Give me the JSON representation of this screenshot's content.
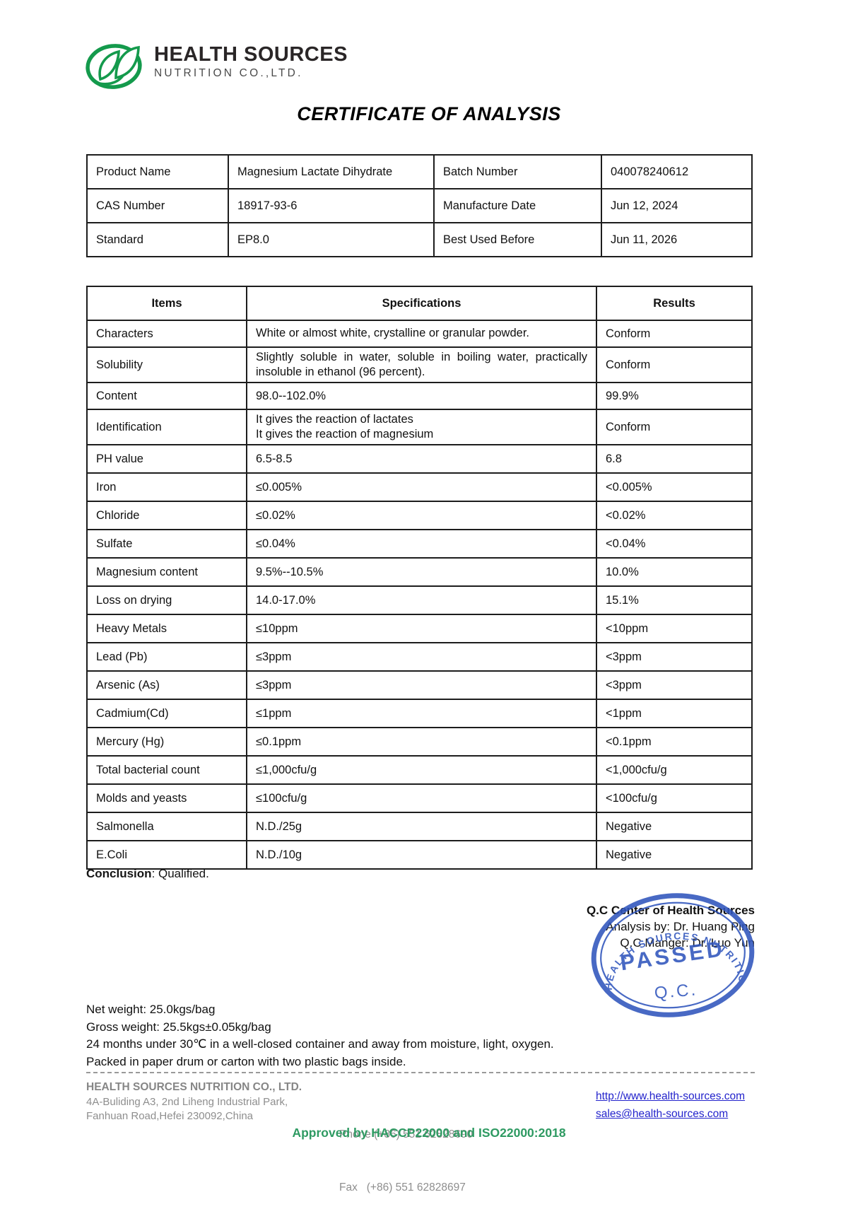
{
  "logo": {
    "name": "HEALTH SOURCES",
    "subtitle": "NUTRITION CO.,LTD.",
    "green": "#149a4c"
  },
  "title": "CERTIFICATE OF ANALYSIS",
  "product_table": {
    "rows": [
      [
        "Product Name",
        "Magnesium Lactate Dihydrate",
        "Batch Number",
        "040078240612"
      ],
      [
        "CAS Number",
        "18917-93-6",
        "Manufacture Date",
        "Jun 12, 2024"
      ],
      [
        "Standard",
        "EP8.0",
        "Best Used Before",
        "Jun 11, 2026"
      ]
    ]
  },
  "spec_table": {
    "headers": [
      "Items",
      "Specifications",
      "Results"
    ],
    "rows": [
      {
        "item": "Characters",
        "spec": "White or almost white, crystalline or granular powder.",
        "result": "Conform",
        "justify": false
      },
      {
        "item": "Solubility",
        "spec": "Slightly soluble in water, soluble in boiling water, practically insoluble in ethanol (96 percent).",
        "result": "Conform",
        "justify": true
      },
      {
        "item": "Content",
        "spec": "98.0--102.0%",
        "result": "99.9%",
        "justify": false
      },
      {
        "item": "Identification",
        "spec": "It gives the reaction of lactates\nIt gives the reaction of magnesium",
        "result": "Conform",
        "justify": false
      },
      {
        "item": "PH value",
        "spec": "6.5-8.5",
        "result": "6.8",
        "justify": false
      },
      {
        "item": "Iron",
        "spec": "≤0.005%",
        "result": "<0.005%",
        "justify": false
      },
      {
        "item": "Chloride",
        "spec": "≤0.02%",
        "result": "<0.02%",
        "justify": false
      },
      {
        "item": "Sulfate",
        "spec": "≤0.04%",
        "result": "<0.04%",
        "justify": false
      },
      {
        "item": "Magnesium content",
        "spec": "9.5%--10.5%",
        "result": "10.0%",
        "justify": false
      },
      {
        "item": "Loss on drying",
        "spec": "14.0-17.0%",
        "result": "15.1%",
        "justify": false
      },
      {
        "item": "Heavy Metals",
        "spec": "≤10ppm",
        "result": "<10ppm",
        "justify": false
      },
      {
        "item": "Lead (Pb)",
        "spec": "≤3ppm",
        "result": "<3ppm",
        "justify": false
      },
      {
        "item": "Arsenic (As)",
        "spec": "≤3ppm",
        "result": "<3ppm",
        "justify": false
      },
      {
        "item": "Cadmium(Cd)",
        "spec": "≤1ppm",
        "result": "<1ppm",
        "justify": false
      },
      {
        "item": "Mercury (Hg)",
        "spec": "≤0.1ppm",
        "result": "<0.1ppm",
        "justify": false
      },
      {
        "item": "Total bacterial count",
        "spec": "≤1,000cfu/g",
        "result": "<1,000cfu/g",
        "justify": false
      },
      {
        "item": "Molds and yeasts",
        "spec": "≤100cfu/g",
        "result": "<100cfu/g",
        "justify": false
      },
      {
        "item": "Salmonella",
        "spec": "N.D./25g",
        "result": "Negative",
        "justify": false
      },
      {
        "item": "E.Coli",
        "spec": "N.D./10g",
        "result": "Negative",
        "justify": false
      }
    ]
  },
  "conclusion": {
    "label": "Conclusion",
    "text": ": Qualified."
  },
  "qc_block": {
    "line1": "Q.C Center of Health Sources",
    "line2": "Analysis by: Dr. Huang Ping",
    "line3": "Q.C Manger: Dr. Luo Yun"
  },
  "stamp": {
    "ring_text": "HEALTH SOURCES NUTRITION CO.,LTD.",
    "center_text": "PASSED",
    "bottom_text": "Q.C.",
    "color": "#2f55bd"
  },
  "notes": {
    "line1": "Net weight: 25.0kgs/bag",
    "line2": "Gross weight: 25.5kgs±0.05kg/bag",
    "line3": "24 months under 30℃ in a well-closed container and away from moisture, light, oxygen.",
    "line4": "Packed in paper drum or carton with two plastic bags inside."
  },
  "footer": {
    "company": "HEALTH SOURCES NUTRITION CO., LTD.",
    "address1": "4A-Buliding A3, 2nd Liheng Industrial Park,",
    "address2": "Fanhuan Road,Hefei 230092,China",
    "phone": "Phone (+86) 551 62828690",
    "fax": "Fax   (+86) 551 62828697",
    "website": "http://www.health-sources.com",
    "email": "sales@health-sources.com",
    "approved": "Approved by HACCP22000 and ISO22000:2018",
    "link_blue": "#2323cc",
    "approved_green": "#2e9a62"
  }
}
